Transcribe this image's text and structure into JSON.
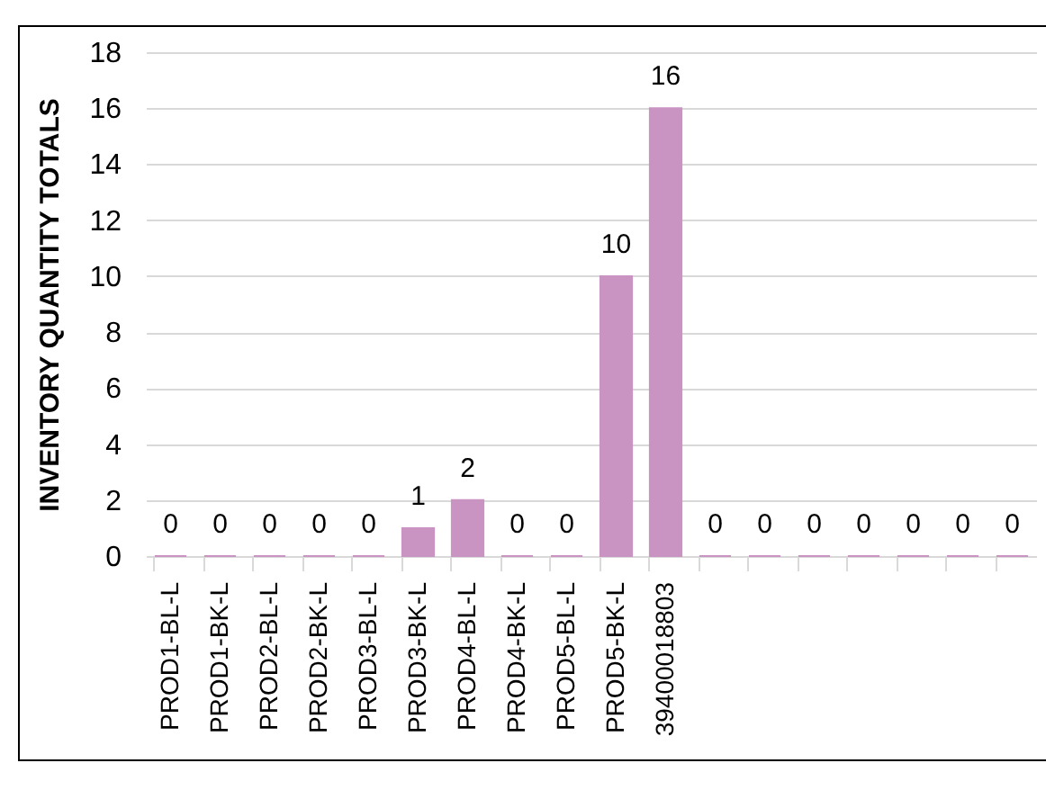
{
  "chart_data": {
    "type": "bar",
    "ylabel": "INVENTORY QUANTITY TOTALS",
    "categories": [
      "PROD1-BL-L",
      "PROD1-BK-L",
      "PROD2-BL-L",
      "PROD2-BK-L",
      "PROD3-BL-L",
      "PROD3-BK-L",
      "PROD4-BL-L",
      "PROD4-BK-L",
      "PROD5-BL-L",
      "PROD5-BK-L",
      "39400018803",
      null,
      null,
      null,
      null,
      null,
      null,
      null
    ],
    "values": [
      0,
      0,
      0,
      0,
      0,
      1,
      2,
      0,
      0,
      10,
      16,
      0,
      0,
      0,
      0,
      0,
      0,
      0
    ],
    "color": "#c994c2",
    "ylim": [
      0,
      18
    ],
    "yticks": [
      0,
      2,
      4,
      6,
      8,
      10,
      12,
      14,
      16,
      18
    ],
    "grid": "y",
    "data_labels": true
  }
}
